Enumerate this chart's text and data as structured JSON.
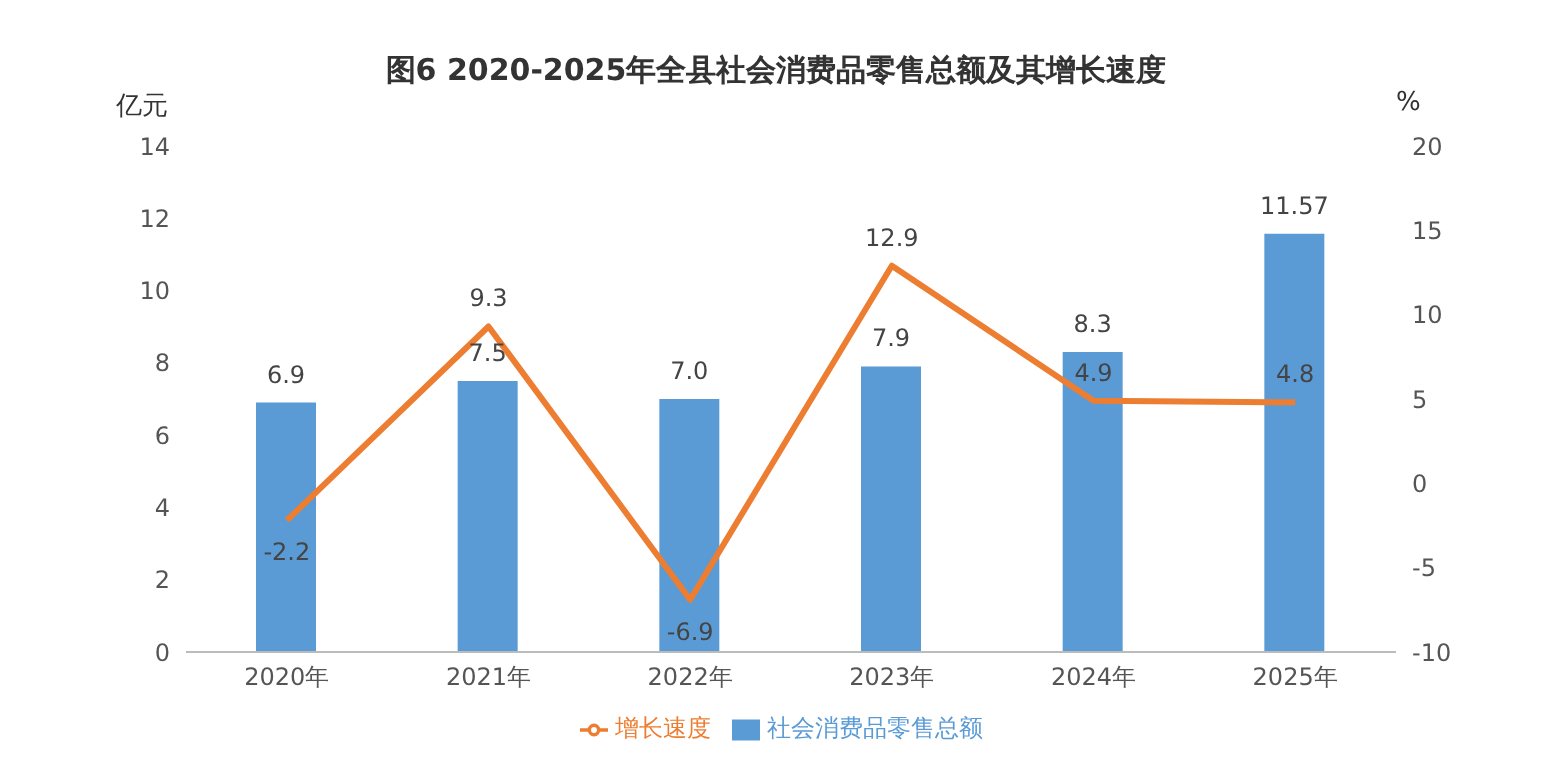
{
  "chart_data": {
    "type": "bar",
    "title": "图6 2020-2025年全县社会消费品零售总额及其增长速度",
    "ylabel": "亿元",
    "y2label": "%",
    "categories": [
      "2020年",
      "2021年",
      "2022年",
      "2023年",
      "2024年",
      "2025年"
    ],
    "series": [
      {
        "name": "社会消费品零售总额",
        "color": "#5b9bd5",
        "values": [
          6.9,
          7.5,
          7.0,
          7.9,
          8.3,
          11.57
        ],
        "value_labels": [
          "6.9",
          "7.5",
          "7.0",
          "7.9",
          "8.3",
          "11.57"
        ]
      },
      {
        "name": "增长速度",
        "type": "line",
        "axis": "y2",
        "color": "#ed7d31",
        "values": [
          -2.2,
          9.3,
          -6.9,
          12.9,
          4.9,
          4.8
        ],
        "value_labels": [
          "-2.2",
          "9.3",
          "-6.9",
          "12.9",
          "4.9",
          "4.8"
        ]
      }
    ],
    "ylim": [
      0,
      14
    ],
    "yticks": [
      0,
      2,
      4,
      6,
      8,
      10,
      12,
      14
    ],
    "y2lim": [
      -10,
      20
    ],
    "y2ticks": [
      -10,
      -5,
      0,
      5,
      10,
      15,
      20
    ],
    "data_labels": true,
    "legend": "bottom",
    "marker": "none",
    "line_style": "solid"
  }
}
